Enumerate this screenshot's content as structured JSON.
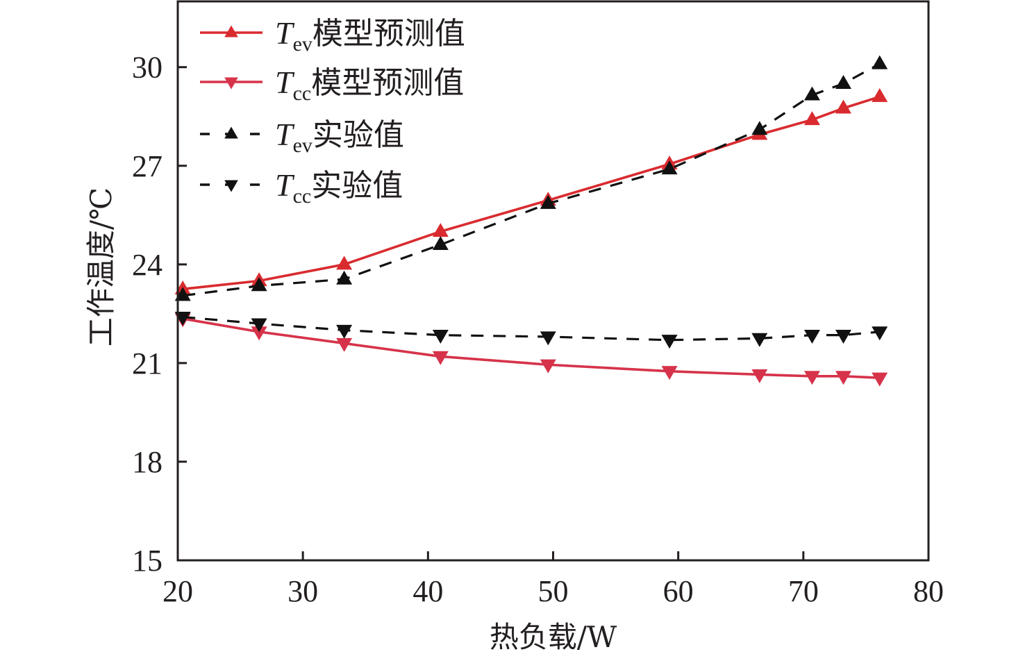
{
  "chart_data": {
    "type": "line",
    "title": "",
    "xlabel": "热负载/W",
    "ylabel": "工作温度/℃",
    "xlim": [
      20,
      80
    ],
    "ylim": [
      15,
      32
    ],
    "xticks": [
      20,
      30,
      40,
      50,
      60,
      70,
      80
    ],
    "yticks": [
      15,
      18,
      21,
      24,
      27,
      30
    ],
    "grid": false,
    "legend_position": "top-left",
    "x": [
      20.4,
      26.5,
      33.3,
      41.0,
      49.6,
      59.3,
      66.5,
      70.7,
      73.2,
      76.1
    ],
    "series": [
      {
        "name": "Tev模型预测值",
        "symbol": "T",
        "subscript": "ev",
        "suffix": "模型预测值",
        "color": "#d92b2f",
        "line": "solid",
        "marker": "triangle-up",
        "values": [
          23.25,
          23.5,
          24.0,
          25.0,
          25.95,
          27.05,
          27.95,
          28.4,
          28.75,
          29.1
        ]
      },
      {
        "name": "Tcc模型预测值",
        "symbol": "T",
        "subscript": "cc",
        "suffix": "模型预测值",
        "color": "#d6334a",
        "line": "solid",
        "marker": "triangle-down",
        "values": [
          22.35,
          21.95,
          21.6,
          21.2,
          20.95,
          20.75,
          20.65,
          20.6,
          20.6,
          20.55
        ]
      },
      {
        "name": "Tev实验值",
        "symbol": "T",
        "subscript": "ev",
        "suffix": "实验值",
        "color": "#111111",
        "line": "dashed",
        "marker": "triangle-up",
        "values": [
          23.05,
          23.35,
          23.55,
          24.6,
          25.85,
          26.9,
          28.1,
          29.15,
          29.5,
          30.1
        ]
      },
      {
        "name": "Tcc实验值",
        "symbol": "T",
        "subscript": "cc",
        "suffix": "实验值",
        "color": "#111111",
        "line": "dashed",
        "marker": "triangle-down",
        "values": [
          22.4,
          22.2,
          22.0,
          21.85,
          21.8,
          21.7,
          21.75,
          21.85,
          21.85,
          21.95
        ]
      }
    ]
  }
}
